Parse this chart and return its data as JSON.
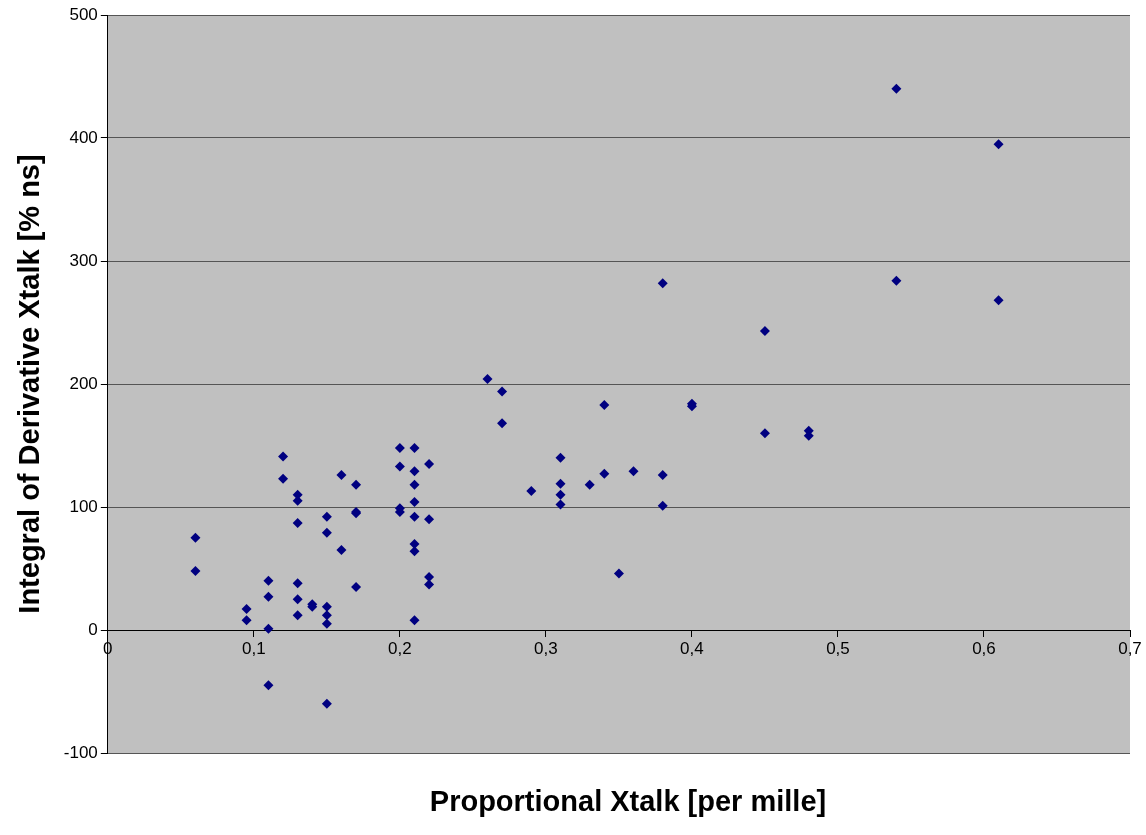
{
  "chart_data": {
    "type": "scatter",
    "xlabel": "Proportional Xtalk [per mille]",
    "ylabel": "Integral of Derivative Xtalk [% ns]",
    "x": [
      0.06,
      0.06,
      0.095,
      0.095,
      0.11,
      0.11,
      0.11,
      0.11,
      0.12,
      0.12,
      0.13,
      0.13,
      0.13,
      0.13,
      0.13,
      0.13,
      0.14,
      0.14,
      0.15,
      0.15,
      0.15,
      0.15,
      0.15,
      0.15,
      0.16,
      0.16,
      0.17,
      0.17,
      0.17,
      0.17,
      0.2,
      0.2,
      0.2,
      0.2,
      0.21,
      0.21,
      0.21,
      0.21,
      0.21,
      0.21,
      0.21,
      0.21,
      0.22,
      0.22,
      0.22,
      0.22,
      0.26,
      0.27,
      0.27,
      0.29,
      0.31,
      0.31,
      0.31,
      0.31,
      0.33,
      0.34,
      0.34,
      0.35,
      0.36,
      0.38,
      0.38,
      0.38,
      0.4,
      0.4,
      0.45,
      0.45,
      0.48,
      0.48,
      0.54,
      0.54,
      0.61,
      0.61
    ],
    "series": [
      {
        "color": "#000080",
        "values": [
          75,
          48,
          17,
          8,
          40,
          27,
          1,
          -45,
          141,
          123,
          110,
          105,
          87,
          38,
          25,
          12,
          21,
          19,
          92,
          79,
          19,
          12,
          5,
          -60,
          126,
          65,
          118,
          96,
          95,
          35,
          148,
          133,
          99,
          96,
          148,
          129,
          118,
          104,
          92,
          70,
          64,
          8,
          135,
          90,
          43,
          37,
          204,
          194,
          168,
          113,
          140,
          119,
          110,
          102,
          118,
          183,
          127,
          46,
          129,
          282,
          126,
          101,
          184,
          182,
          243,
          160,
          162,
          158,
          440,
          284,
          395,
          268
        ]
      }
    ],
    "xlim": [
      0,
      0.7
    ],
    "xticks": [
      0,
      {
        "value": 0.1,
        "label": "0,1"
      },
      {
        "value": 0.2,
        "label": "0,2"
      },
      {
        "value": 0.3,
        "label": "0,3"
      },
      {
        "value": 0.4,
        "label": "0,4"
      },
      {
        "value": 0.5,
        "label": "0,5"
      },
      {
        "value": 0.6,
        "label": "0,6"
      },
      {
        "value": 0.7,
        "label": "0,7"
      }
    ],
    "ylim": [
      -100,
      500
    ],
    "yticks": [
      -100,
      0,
      100,
      200,
      300,
      400,
      500
    ],
    "grid": "y",
    "marker": "diamond",
    "legend": false
  }
}
